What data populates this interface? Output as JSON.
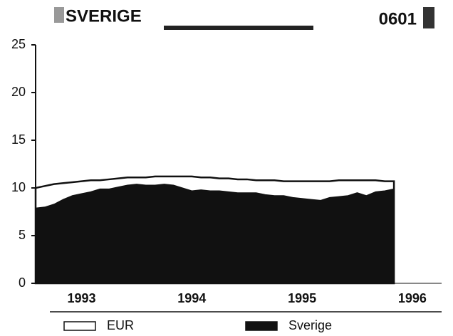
{
  "chart_data": {
    "type": "area",
    "title": "SVERIGE",
    "subtitle": "0601",
    "categories": [
      null,
      null,
      null,
      null,
      null,
      "1993",
      null,
      null,
      null,
      null,
      null,
      null,
      null,
      null,
      null,
      null,
      null,
      "1994",
      null,
      null,
      null,
      null,
      null,
      null,
      null,
      null,
      null,
      null,
      null,
      "1995",
      null,
      null,
      null,
      null,
      null,
      null,
      null,
      null,
      null,
      null,
      null,
      "1996",
      null,
      null,
      null
    ],
    "series": [
      {
        "name": "EUR",
        "color": "#ffffff",
        "values": [
          10.0,
          10.2,
          10.4,
          10.5,
          10.6,
          10.7,
          10.8,
          10.8,
          10.9,
          11.0,
          11.1,
          11.1,
          11.1,
          11.2,
          11.2,
          11.2,
          11.2,
          11.2,
          11.1,
          11.1,
          11.0,
          11.0,
          10.9,
          10.9,
          10.8,
          10.8,
          10.8,
          10.7,
          10.7,
          10.7,
          10.7,
          10.7,
          10.7,
          10.8,
          10.8,
          10.8,
          10.8,
          10.8,
          10.7,
          10.7,
          null,
          null,
          null,
          null,
          null
        ]
      },
      {
        "name": "Sverige",
        "color": "#111111",
        "values": [
          7.9,
          8.0,
          8.3,
          8.8,
          9.2,
          9.4,
          9.6,
          9.9,
          9.9,
          10.1,
          10.3,
          10.4,
          10.3,
          10.3,
          10.4,
          10.3,
          10.0,
          9.7,
          9.8,
          9.7,
          9.7,
          9.6,
          9.5,
          9.5,
          9.5,
          9.3,
          9.2,
          9.2,
          9.0,
          8.9,
          8.8,
          8.7,
          9.0,
          9.1,
          9.2,
          9.5,
          9.2,
          9.6,
          9.7,
          9.9,
          null,
          null,
          null,
          null,
          null
        ]
      }
    ],
    "ylim": [
      0,
      25
    ],
    "yticks": [
      0,
      5,
      10,
      15,
      20,
      25
    ],
    "legend": "bottom"
  }
}
